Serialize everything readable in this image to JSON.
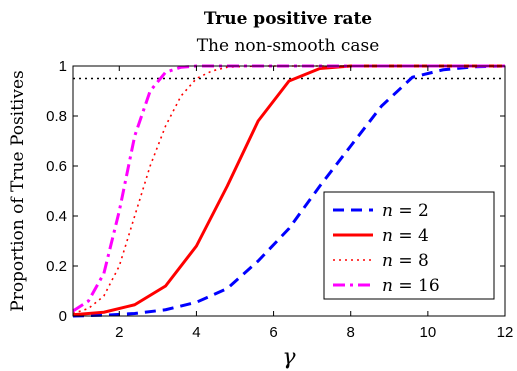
{
  "chart_data": {
    "type": "line",
    "title": "True positive rate",
    "subtitle": "The non-smooth case",
    "xlabel": "γ",
    "ylabel": "Proportion of True Positives",
    "xlim": [
      0.8,
      12
    ],
    "ylim": [
      0,
      1
    ],
    "xticks": [
      2,
      4,
      6,
      8,
      10,
      12
    ],
    "yticks": [
      0,
      0.2,
      0.4,
      0.6,
      0.8,
      1
    ],
    "xtick_labels": [
      "2",
      "4",
      "6",
      "8",
      "10",
      "12"
    ],
    "ytick_labels": [
      "0",
      "0.2",
      "0.4",
      "0.6",
      "0.8",
      "1"
    ],
    "grid": false,
    "legend_position": "lower-right",
    "reference_line": {
      "y": 0.95,
      "style": "dotted",
      "color": "#000000"
    },
    "series": [
      {
        "name": "n = 2",
        "legend_var": "n",
        "legend_val": "2",
        "color": "#0000ff",
        "style": "dashed",
        "x": [
          0.8,
          1.6,
          2.4,
          3.2,
          4.0,
          4.8,
          5.6,
          6.4,
          7.2,
          8.0,
          8.8,
          9.6,
          10.4,
          11.2,
          12.0
        ],
        "y": [
          0.0,
          0.003,
          0.01,
          0.025,
          0.055,
          0.11,
          0.22,
          0.35,
          0.52,
          0.68,
          0.84,
          0.955,
          0.985,
          0.997,
          1.0
        ]
      },
      {
        "name": "n = 4",
        "legend_var": "n",
        "legend_val": "4",
        "color": "#ff0000",
        "style": "solid",
        "x": [
          0.8,
          1.6,
          2.4,
          3.2,
          4.0,
          4.8,
          5.6,
          6.4,
          7.2,
          8.0,
          8.8,
          9.6,
          10.4,
          11.2,
          12.0
        ],
        "y": [
          0.005,
          0.015,
          0.045,
          0.12,
          0.28,
          0.52,
          0.78,
          0.94,
          0.99,
          1.0,
          1.0,
          1.0,
          1.0,
          1.0,
          1.0
        ]
      },
      {
        "name": "n = 8",
        "legend_var": "n",
        "legend_val": "8",
        "color": "#ff0000",
        "style": "dotted",
        "x": [
          0.8,
          1.2,
          1.6,
          2.0,
          2.4,
          2.8,
          3.2,
          3.6,
          4.0,
          4.4,
          4.8,
          5.6,
          6.4,
          8.0,
          10.0,
          12.0
        ],
        "y": [
          0.01,
          0.03,
          0.08,
          0.2,
          0.4,
          0.6,
          0.76,
          0.88,
          0.95,
          0.98,
          0.995,
          1.0,
          1.0,
          1.0,
          1.0,
          1.0
        ]
      },
      {
        "name": "n = 16",
        "legend_var": "n",
        "legend_val": "16",
        "color": "#ff00ff",
        "style": "dashdot",
        "x": [
          0.8,
          1.2,
          1.6,
          2.0,
          2.4,
          2.8,
          3.2,
          3.6,
          4.0,
          6.0,
          8.0,
          10.0,
          12.0
        ],
        "y": [
          0.02,
          0.06,
          0.17,
          0.42,
          0.72,
          0.9,
          0.975,
          0.995,
          1.0,
          1.0,
          1.0,
          1.0,
          1.0
        ]
      }
    ]
  }
}
